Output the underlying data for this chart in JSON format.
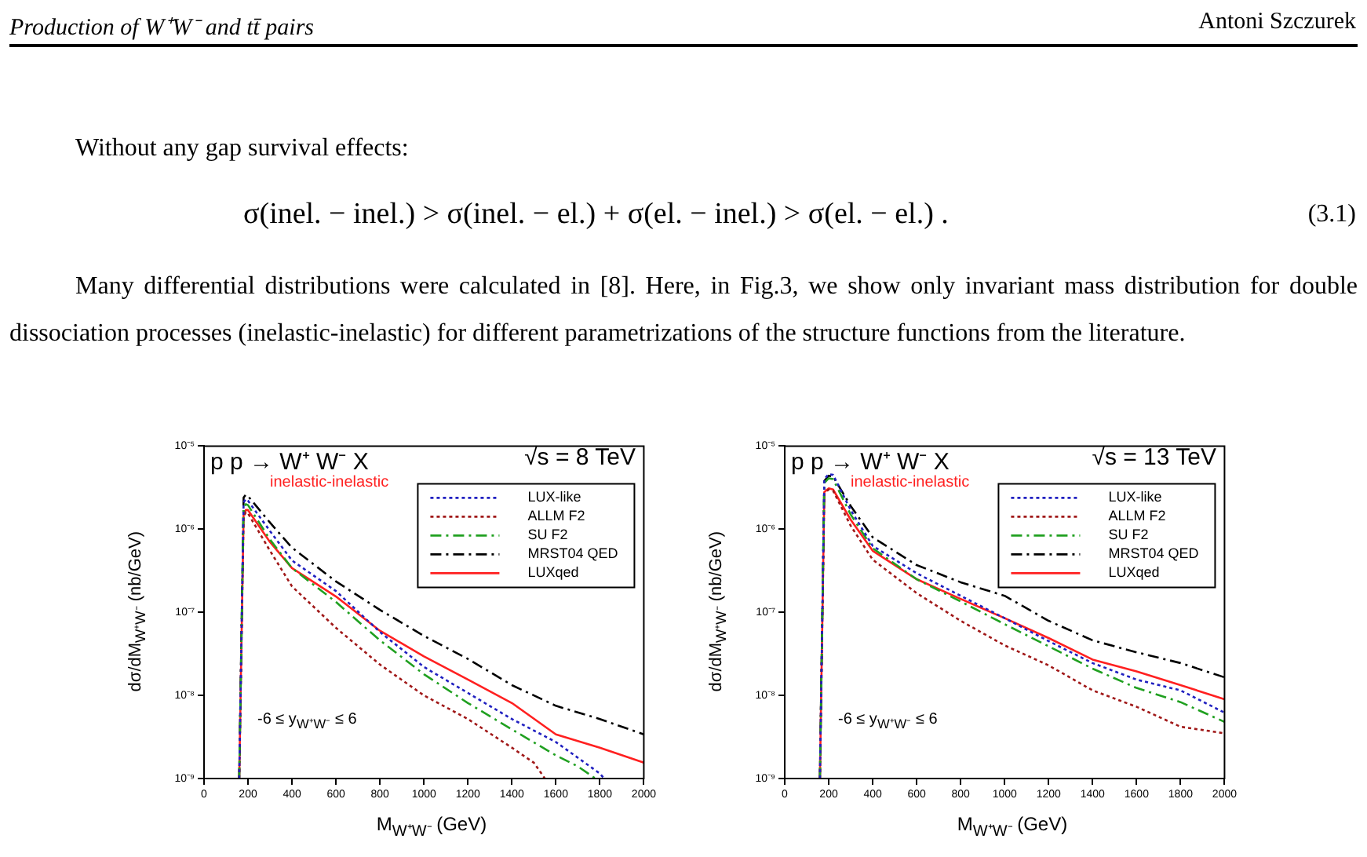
{
  "chart_data": [
    {
      "type": "line",
      "annotations": [
        "p p → W⁺ W⁻ X",
        "√s = 8 TeV",
        "inelastic-inelastic",
        "-6 ≤ y$_{W⁺W⁻}$ ≤ 6",
        "Production of W⁺W⁻ and tt̄ pairs",
        "Antoni Szczurek",
        "Without any gap survival effects:",
        "σ(inel. − inel.) > σ(inel. − el.) + σ(el. − inel.) > σ(el. − el.) .",
        "(3.1)",
        "Many differential distributions were calculated in [8]. Here, in Fig.3, we show only invariant mass distribution for double dissociation processes (inelastic-inelastic) for different parametrizations of the structure functions from the literature."
      ],
      "xlabel": "M$_{W⁺W⁻}$ (GeV)",
      "ylabel": "dσ/dM$_{W⁺W⁻}$ (nb/GeV)",
      "log": "y",
      "grid": false,
      "legend": "top right",
      "marker": "none",
      "xlim": [
        0,
        2000
      ],
      "xticks": [
        0,
        200,
        400,
        600,
        800,
        1000,
        1200,
        1400,
        1600,
        1800,
        2000
      ],
      "ylim": [
        1e-09,
        1e-05
      ],
      "yticks": [
        {
          "value": 1e-09,
          "label": "10⁻⁹"
        },
        {
          "value": 1e-08,
          "label": "10⁻⁸"
        },
        {
          "value": 1e-07,
          "label": "10⁻⁷"
        },
        {
          "value": 1e-06,
          "label": "10⁻⁶"
        },
        {
          "value": 1e-05,
          "label": "10⁻⁵"
        }
      ],
      "series": [
        {
          "name": "LUX-like",
          "color": "#2020c0",
          "line_style": "dotted",
          "x": [
            160,
            180,
            190,
            200,
            300,
            400,
            600,
            800,
            1000,
            1200,
            1400,
            1600,
            1800,
            1820
          ],
          "values": [
            1e-09,
            2.1e-06,
            2.3e-06,
            2.2e-06,
            9.5e-07,
            4.2e-07,
            1.8e-07,
            5.8e-08,
            2.2e-08,
            1.07e-08,
            5.2e-09,
            2.75e-09,
            1.15e-09,
            1e-09
          ]
        },
        {
          "name": "ALLM F2",
          "color": "#a01818",
          "line_style": "dotted",
          "x": [
            160,
            180,
            190,
            200,
            300,
            400,
            600,
            800,
            1000,
            1200,
            1400,
            1500,
            1550
          ],
          "values": [
            1e-09,
            1.4e-06,
            1.6e-06,
            1.55e-06,
            5.5e-07,
            2.05e-07,
            6.5e-08,
            2.35e-08,
            1e-08,
            5.2e-09,
            2.35e-09,
            1.55e-09,
            1e-09
          ]
        },
        {
          "name": "SU F2",
          "color": "#20a020",
          "line_style": "dashed",
          "x": [
            160,
            180,
            190,
            200,
            300,
            400,
            600,
            800,
            1000,
            1200,
            1400,
            1600,
            1700,
            1780
          ],
          "values": [
            1e-09,
            1.8e-06,
            2e-06,
            1.95e-06,
            7.5e-07,
            3.4e-07,
            1.33e-07,
            4.6e-08,
            1.8e-08,
            8.1e-09,
            3.9e-09,
            1.9e-09,
            1.4e-09,
            1e-09
          ]
        },
        {
          "name": "MRST04 QED",
          "color": "#000000",
          "line_style": "dashed",
          "x": [
            160,
            180,
            190,
            200,
            300,
            400,
            600,
            800,
            1000,
            1200,
            1400,
            1600,
            1800,
            2000
          ],
          "values": [
            1e-09,
            2.4e-06,
            2.6e-06,
            2.5e-06,
            1.2e-06,
            6e-07,
            2.35e-07,
            1.07e-07,
            5.2e-08,
            2.75e-08,
            1.33e-08,
            7.5e-09,
            5.2e-09,
            3.4e-09
          ]
        },
        {
          "name": "LUXqed",
          "color": "#ff2020",
          "line_style": "solid",
          "x": [
            160,
            180,
            190,
            200,
            300,
            400,
            600,
            800,
            1000,
            1200,
            1400,
            1600,
            1800,
            2000
          ],
          "values": [
            1e-09,
            1.5e-06,
            1.7e-06,
            1.7e-06,
            7e-07,
            3.4e-07,
            1.55e-07,
            6e-08,
            2.95e-08,
            1.55e-08,
            8.1e-09,
            3.4e-09,
            2.35e-09,
            1.55e-09
          ]
        }
      ]
    },
    {
      "type": "line",
      "annotations": [
        "p p → W⁺ W⁻ X",
        "√s = 13 TeV",
        "inelastic-inelastic",
        "-6 ≤ y$_{W⁺W⁻}$ ≤ 6"
      ],
      "xlabel": "M$_{W⁺W⁻}$ (GeV)",
      "ylabel": "dσ/dM$_{W⁺W⁻}$ (nb/GeV)",
      "log": "y",
      "grid": false,
      "legend": "top right",
      "marker": "none",
      "xlim": [
        0,
        2000
      ],
      "xticks": [
        0,
        200,
        400,
        600,
        800,
        1000,
        1200,
        1400,
        1600,
        1800,
        2000
      ],
      "ylim": [
        1e-09,
        1e-05
      ],
      "yticks": [
        {
          "value": 1e-09,
          "label": "10⁻⁹"
        },
        {
          "value": 1e-08,
          "label": "10⁻⁸"
        },
        {
          "value": 1e-07,
          "label": "10⁻⁷"
        },
        {
          "value": 1e-06,
          "label": "10⁻⁶"
        },
        {
          "value": 1e-05,
          "label": "10⁻⁵"
        }
      ],
      "series": [
        {
          "name": "LUX-like",
          "color": "#2020c0",
          "line_style": "dotted",
          "x": [
            160,
            180,
            200,
            220,
            300,
            400,
            600,
            800,
            1000,
            1200,
            1400,
            1600,
            1800,
            2000
          ],
          "values": [
            1e-09,
            4e-06,
            4.6e-06,
            4.5e-06,
            1.7e-06,
            6.3e-07,
            2.95e-07,
            1.58e-07,
            8.5e-08,
            4.5e-08,
            2.45e-08,
            1.55e-08,
            1.15e-08,
            6.2e-09
          ]
        },
        {
          "name": "ALLM F2",
          "color": "#a01818",
          "line_style": "dotted",
          "x": [
            160,
            180,
            200,
            220,
            300,
            400,
            600,
            800,
            1000,
            1200,
            1400,
            1600,
            1800,
            2000
          ],
          "values": [
            1e-09,
            2.7e-06,
            3e-06,
            2.9e-06,
            1.1e-06,
            4.3e-07,
            1.7e-07,
            7.9e-08,
            4e-08,
            2.3e-08,
            1.15e-08,
            7.3e-09,
            4.2e-09,
            3.5e-09
          ]
        },
        {
          "name": "SU F2",
          "color": "#20a020",
          "line_style": "dashed",
          "x": [
            160,
            180,
            200,
            220,
            300,
            400,
            600,
            800,
            1000,
            1200,
            1400,
            1600,
            1800,
            2000
          ],
          "values": [
            1e-09,
            3.6e-06,
            4.1e-06,
            4e-06,
            1.5e-06,
            5.9e-07,
            2.5e-07,
            1.35e-07,
            7.2e-08,
            3.9e-08,
            2.1e-08,
            1.23e-08,
            8.3e-09,
            4.8e-09
          ]
        },
        {
          "name": "MRST04 QED",
          "color": "#000000",
          "line_style": "dashed",
          "x": [
            160,
            180,
            200,
            220,
            300,
            400,
            600,
            800,
            1000,
            1200,
            1400,
            1600,
            1800,
            2000
          ],
          "values": [
            1e-09,
            3.8e-06,
            4.4e-06,
            4.3e-06,
            1.9e-06,
            8e-07,
            3.7e-07,
            2.3e-07,
            1.58e-07,
            7.9e-08,
            4.6e-08,
            3.3e-08,
            2.45e-08,
            1.65e-08
          ]
        },
        {
          "name": "LUXqed",
          "color": "#ff2020",
          "line_style": "solid",
          "x": [
            160,
            180,
            200,
            220,
            300,
            400,
            600,
            800,
            1000,
            1200,
            1400,
            1600,
            1800,
            2000
          ],
          "values": [
            1e-09,
            2.8e-06,
            3.1e-06,
            3e-06,
            1.3e-06,
            5.5e-07,
            2.5e-07,
            1.45e-07,
            8.5e-08,
            4.9e-08,
            2.7e-08,
            1.95e-08,
            1.33e-08,
            9e-09
          ]
        }
      ]
    }
  ]
}
